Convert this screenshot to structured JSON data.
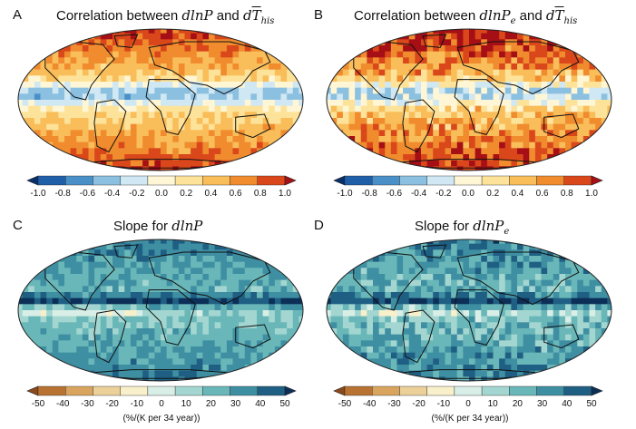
{
  "panels": [
    {
      "letter": "A",
      "title_prefix": "Correlation between ",
      "title_var": "dlnP",
      "title_var_sub": "",
      "title_mid": " and ",
      "title_var2": "d",
      "title_var2_over": "T",
      "title_var2_sub": "his",
      "colormap": "correlation",
      "cbar_ticks": [
        "-1.0",
        "-0.8",
        "-0.6",
        "-0.4",
        "-0.2",
        "0.0",
        "0.2",
        "0.4",
        "0.6",
        "0.8",
        "1.0"
      ],
      "cbar_label": ""
    },
    {
      "letter": "B",
      "title_prefix": "Correlation between ",
      "title_var": "dlnP",
      "title_var_sub": "e",
      "title_mid": " and ",
      "title_var2": "d",
      "title_var2_over": "T",
      "title_var2_sub": "his",
      "colormap": "correlation",
      "cbar_ticks": [
        "-1.0",
        "-0.8",
        "-0.6",
        "-0.4",
        "-0.2",
        "0.0",
        "0.2",
        "0.4",
        "0.6",
        "0.8",
        "1.0"
      ],
      "cbar_label": ""
    },
    {
      "letter": "C",
      "title_prefix": "Slope for ",
      "title_var": "dlnP",
      "title_var_sub": "",
      "title_mid": "",
      "title_var2": "",
      "title_var2_over": "",
      "title_var2_sub": "",
      "colormap": "slope",
      "cbar_ticks": [
        "-50",
        "-40",
        "-30",
        "-20",
        "-10",
        "0",
        "10",
        "20",
        "30",
        "40",
        "50"
      ],
      "cbar_label": "(%/(K per 34 year))"
    },
    {
      "letter": "D",
      "title_prefix": "Slope for ",
      "title_var": "dlnP",
      "title_var_sub": "e",
      "title_mid": "",
      "title_var2": "",
      "title_var2_over": "",
      "title_var2_sub": "",
      "colormap": "slope",
      "cbar_ticks": [
        "-50",
        "-40",
        "-30",
        "-20",
        "-10",
        "0",
        "10",
        "20",
        "30",
        "40",
        "50"
      ],
      "cbar_label": "(%/(K per 34 year))"
    }
  ],
  "colormaps": {
    "correlation": [
      "#08306b",
      "#1f5fa8",
      "#4a90c8",
      "#8cc0e0",
      "#cfe8f3",
      "#fff6d5",
      "#fde39a",
      "#f9bd5a",
      "#f08c2e",
      "#d9471b",
      "#a50f15"
    ],
    "slope": [
      "#8c4a1b",
      "#b87333",
      "#d9a45e",
      "#ecd09a",
      "#f8efcb",
      "#d8eee6",
      "#a3d6d0",
      "#69b7b8",
      "#3f8fa3",
      "#1f5f83",
      "#0c2f57"
    ]
  }
}
